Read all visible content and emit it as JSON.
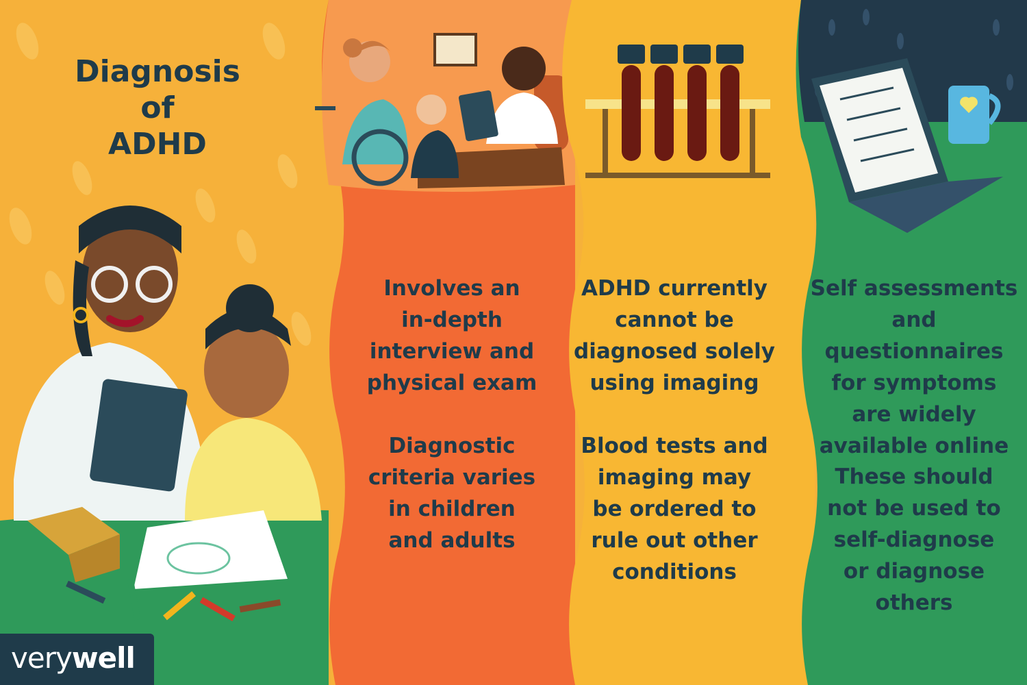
{
  "title": "Diagnosis\nof\nADHD",
  "columns": [
    {
      "text_top": "Involves an\nin-depth\ninterview and\nphysical exam",
      "text_bottom": "Diagnostic\ncriteria varies\nin children\nand adults"
    },
    {
      "text_top": "ADHD currently\ncannot be\ndiagnosed solely\nusing imaging",
      "text_bottom": "Blood tests and\nimaging may\nbe ordered to\nrule out other\nconditions"
    },
    {
      "text_top": "Self assessments\nand questionnaires\nfor symptoms\nare widely\navailable online",
      "text_bottom": "These should\nnot be used to\nself-diagnose\nor diagnose\nothers"
    }
  ],
  "logo": {
    "part1": "very",
    "part2": "well"
  },
  "colors": {
    "panel1": "#f6b13a",
    "panel2_top": "#f79a4f",
    "panel2": "#f26a34",
    "panel3": "#f8b733",
    "panel4_top": "#22394a",
    "panel4": "#2f9a5a",
    "text": "#1f3b4a"
  },
  "icons": [
    "clinician-child-drawing-illustration",
    "doctor-consultation-illustration",
    "blood-test-tubes-illustration",
    "laptop-questionnaire-illustration",
    "coffee-mug-heart-icon"
  ]
}
